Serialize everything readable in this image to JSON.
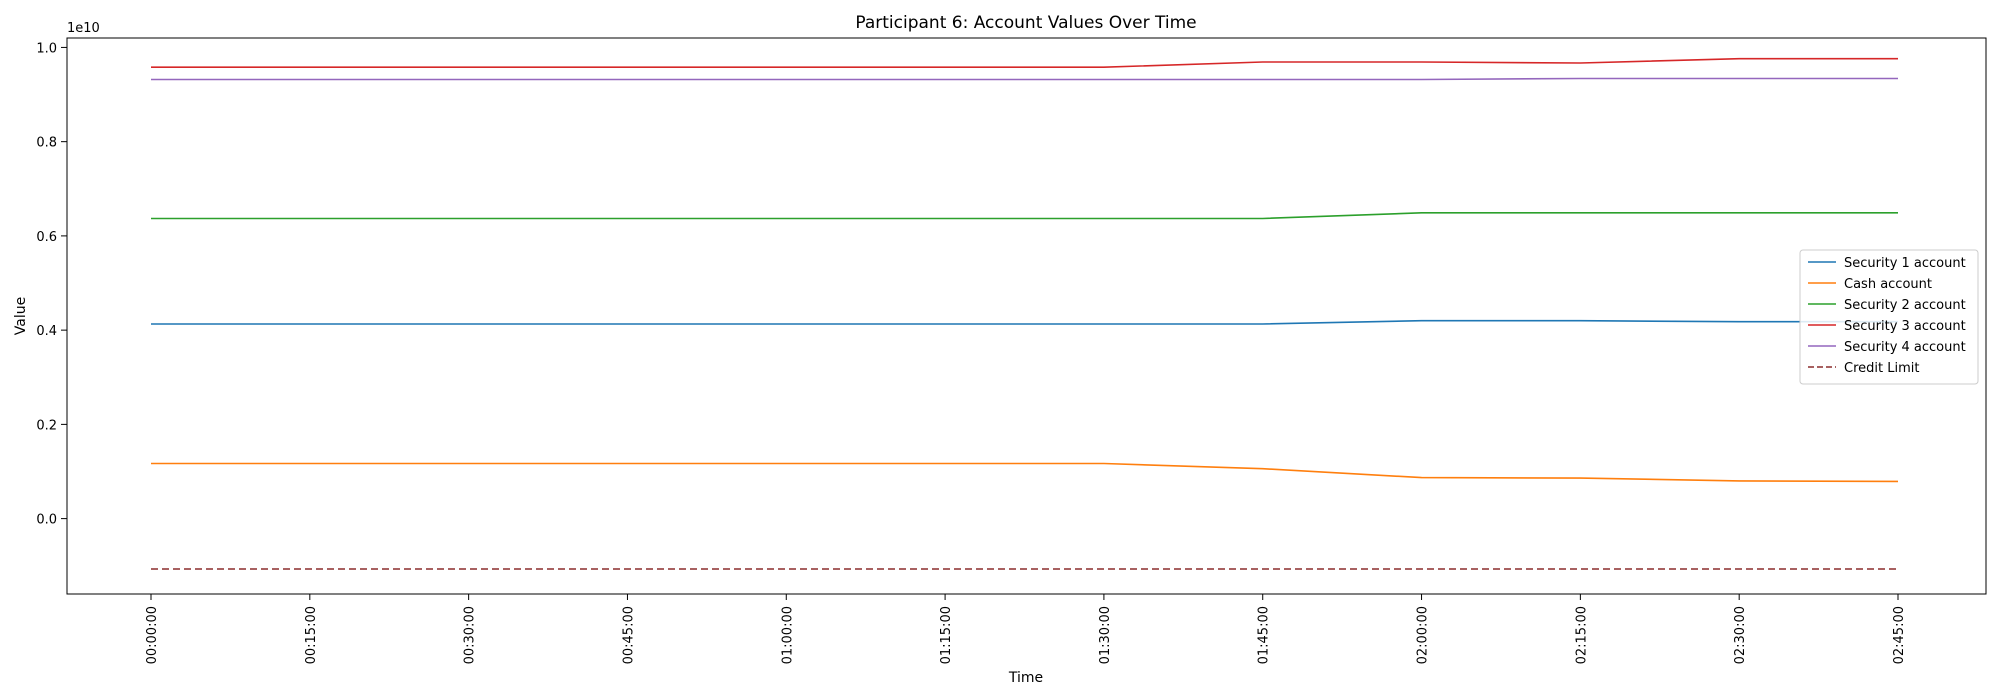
{
  "chart_data": {
    "type": "line",
    "title": "Participant 6: Account Values Over Time",
    "xlabel": "Time",
    "ylabel": "Value",
    "y_offset_label": "1e10",
    "x": [
      "00:00:00",
      "00:15:00",
      "00:30:00",
      "00:45:00",
      "01:00:00",
      "01:15:00",
      "01:30:00",
      "01:45:00",
      "02:00:00",
      "02:15:00",
      "02:30:00",
      "02:45:00"
    ],
    "x_tick_labels": [
      "00:00:00",
      "00:15:00",
      "00:30:00",
      "00:45:00",
      "01:00:00",
      "01:15:00",
      "01:30:00",
      "01:45:00",
      "02:00:00",
      "02:15:00",
      "02:30:00",
      "02:45:00"
    ],
    "ylim": [
      -1.6,
      10.2
    ],
    "y_ticks": [
      0.0,
      0.2,
      0.4,
      0.6,
      0.8,
      1.0
    ],
    "y_tick_labels": [
      "0.0",
      "0.2",
      "0.4",
      "0.6",
      "0.8",
      "1.0"
    ],
    "y_scale_factor": 10,
    "y_units": "billions",
    "grid": false,
    "legend_position": "right",
    "series": [
      {
        "name": "Security 1 account",
        "color": "#1f77b4",
        "dash": "solid",
        "values": [
          4.13,
          4.13,
          4.13,
          4.13,
          4.13,
          4.13,
          4.13,
          4.13,
          4.2,
          4.2,
          4.18,
          4.18
        ]
      },
      {
        "name": "Cash account",
        "color": "#ff7f0e",
        "dash": "solid",
        "values": [
          1.17,
          1.17,
          1.17,
          1.17,
          1.17,
          1.17,
          1.17,
          1.06,
          0.87,
          0.86,
          0.8,
          0.79
        ]
      },
      {
        "name": "Security 2 account",
        "color": "#2ca02c",
        "dash": "solid",
        "values": [
          6.37,
          6.37,
          6.37,
          6.37,
          6.37,
          6.37,
          6.37,
          6.37,
          6.49,
          6.49,
          6.49,
          6.49
        ]
      },
      {
        "name": "Security 3 account",
        "color": "#d62728",
        "dash": "solid",
        "values": [
          9.58,
          9.58,
          9.58,
          9.58,
          9.58,
          9.58,
          9.58,
          9.69,
          9.69,
          9.67,
          9.76,
          9.76
        ]
      },
      {
        "name": "Security 4 account",
        "color": "#9467bd",
        "dash": "solid",
        "values": [
          9.32,
          9.32,
          9.32,
          9.32,
          9.32,
          9.32,
          9.32,
          9.32,
          9.32,
          9.34,
          9.34,
          9.34
        ]
      },
      {
        "name": "Credit Limit",
        "color": "#8c2d2d",
        "dash": "dashed",
        "values": [
          -1.07,
          -1.07,
          -1.07,
          -1.07,
          -1.07,
          -1.07,
          -1.07,
          -1.07,
          -1.07,
          -1.07,
          -1.07,
          -1.07
        ]
      }
    ]
  }
}
